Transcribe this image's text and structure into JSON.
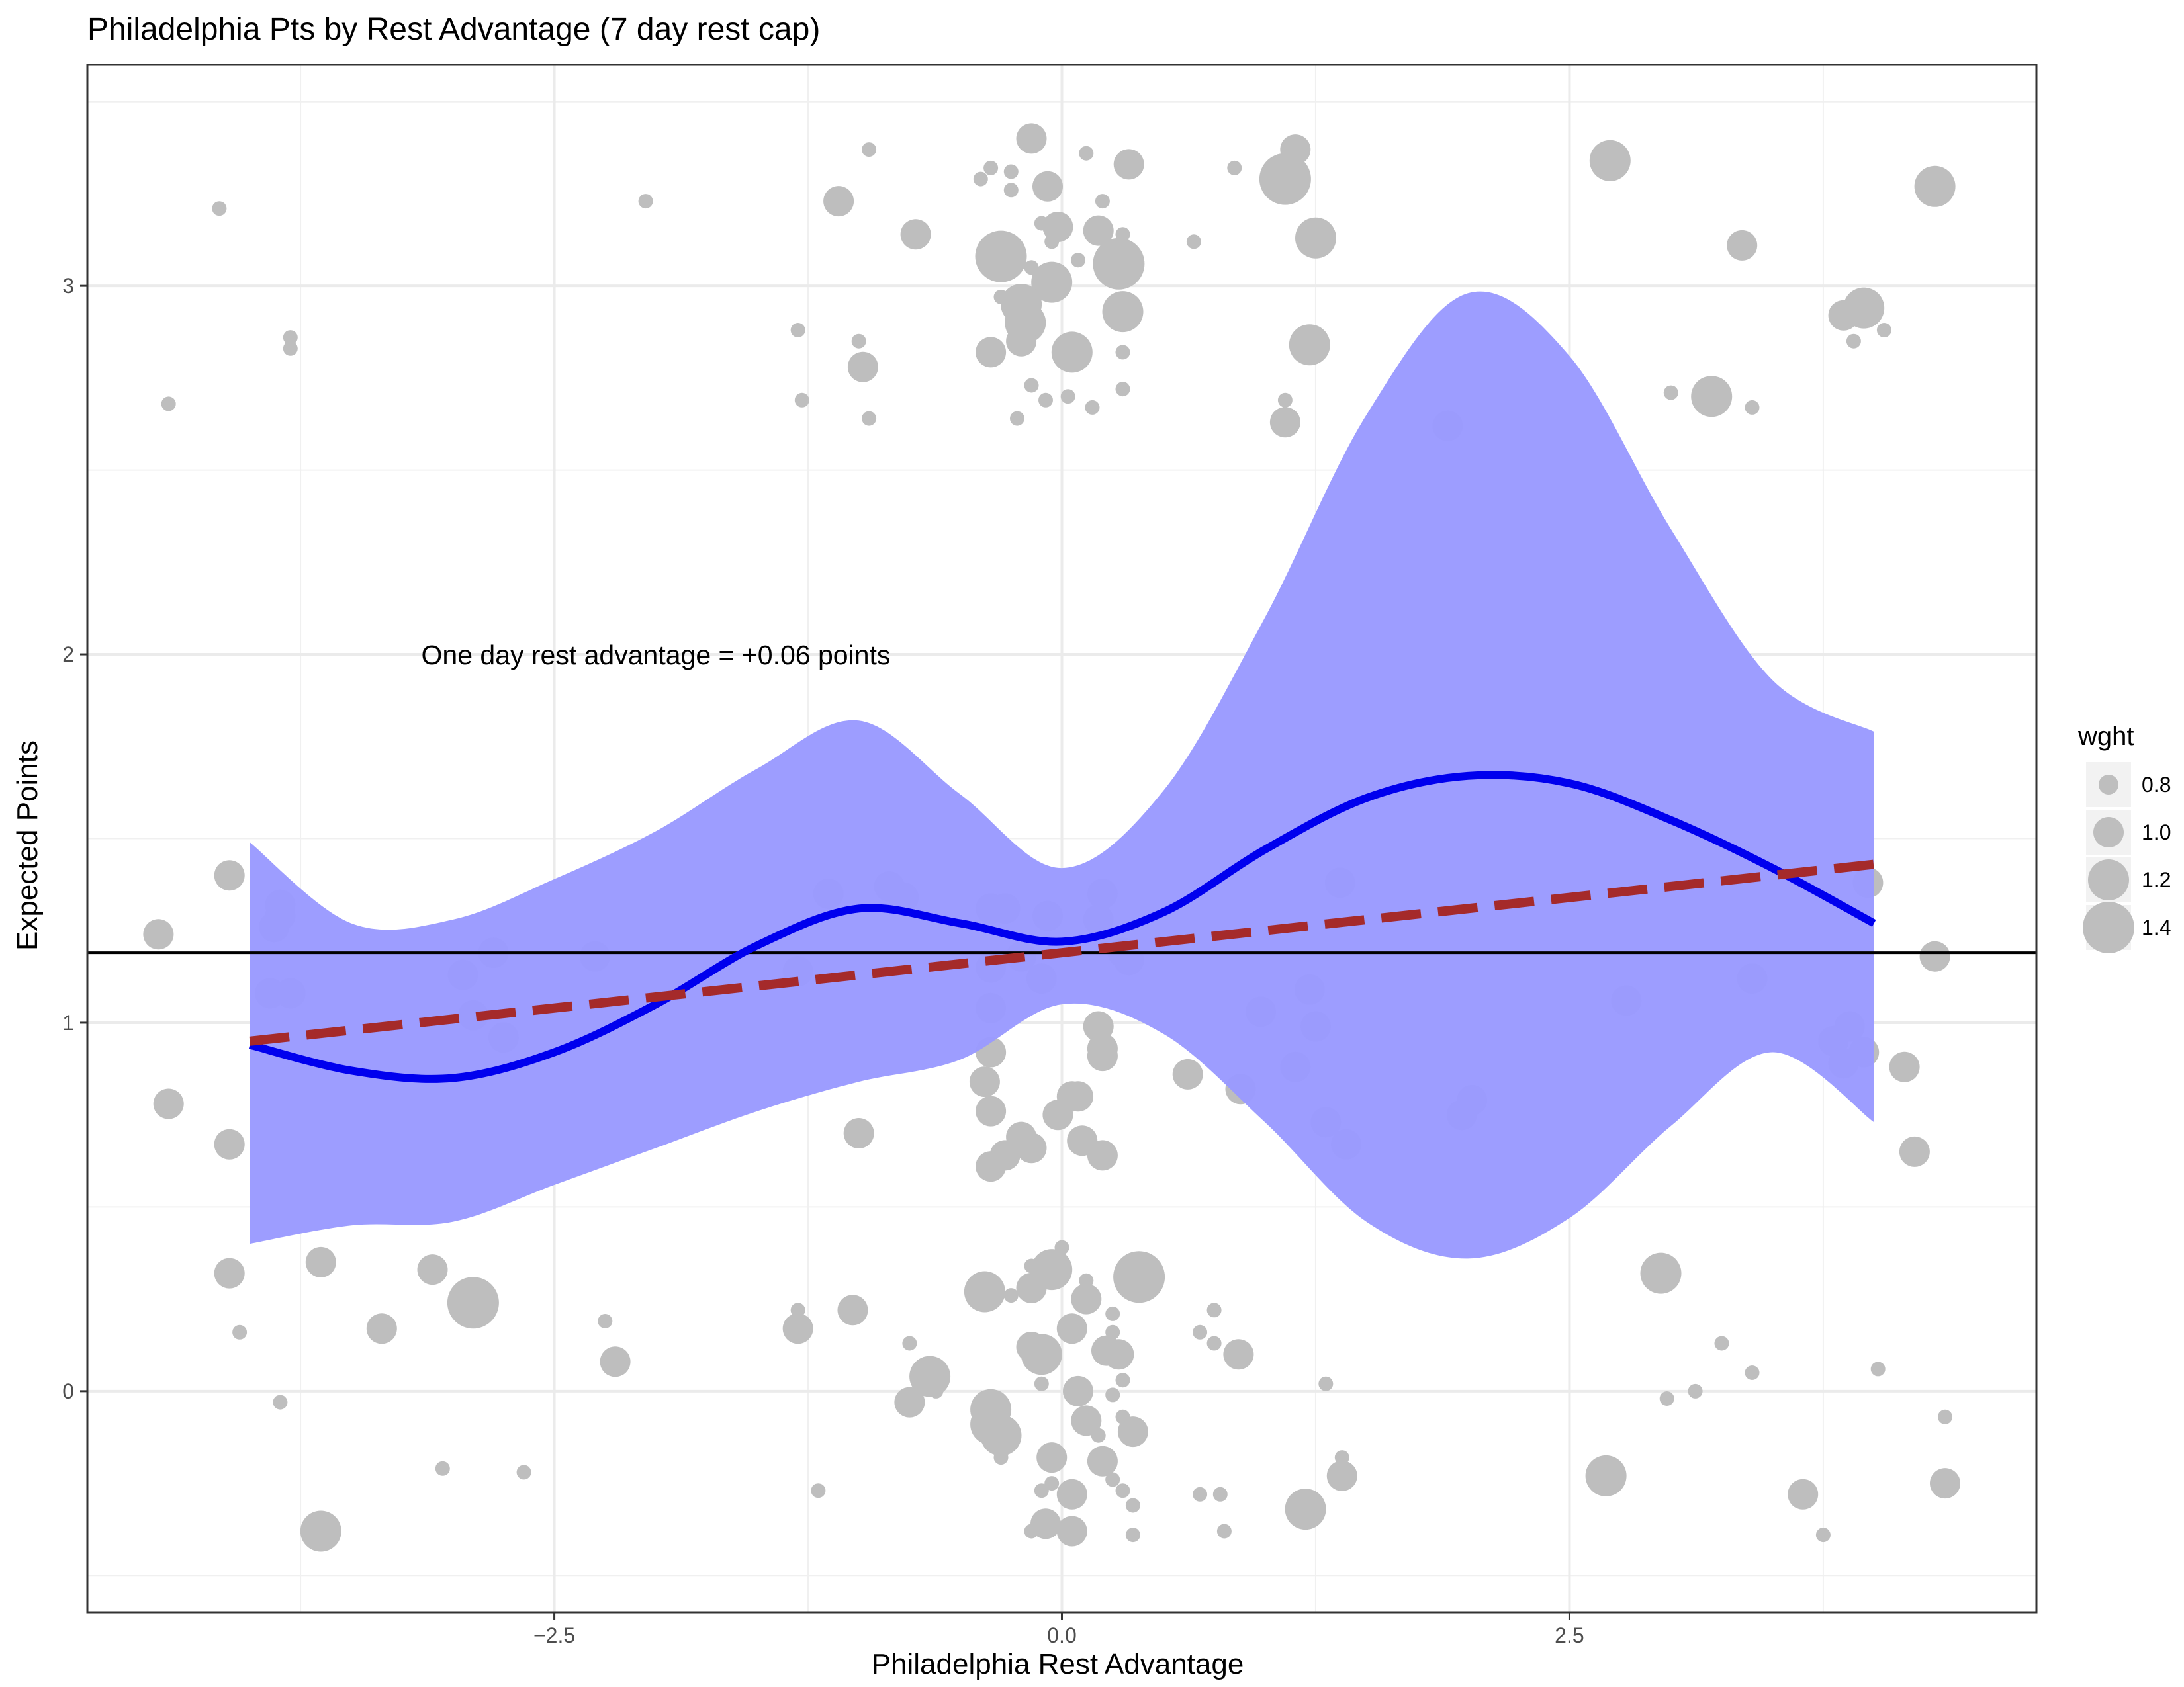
{
  "chart_data": {
    "type": "scatter",
    "title": "Philadelphia Pts by Rest Advantage (7 day rest cap)",
    "xlabel": "Philadelphia Rest Advantage",
    "ylabel": "Expected Points",
    "xlim": [
      -4.8,
      4.8
    ],
    "ylim": [
      -0.6,
      3.6
    ],
    "x_ticks": [
      -2.5,
      0,
      2.5
    ],
    "x_tick_labels": [
      "−2.5",
      "0.0",
      "2.5"
    ],
    "y_ticks": [
      0,
      1,
      2,
      3
    ],
    "y_tick_labels": [
      "0",
      "1",
      "2",
      "3"
    ],
    "grid": true,
    "reference_line": {
      "y": 1.19
    },
    "annotation": {
      "text": "One day rest advantage = +0.06 points",
      "x": -2.0,
      "y": 2.0
    },
    "legend": {
      "title": "wght",
      "placement": "right",
      "entries": [
        {
          "label": "0.8",
          "value": 0.8
        },
        {
          "label": "1.0",
          "value": 1.0
        },
        {
          "label": "1.2",
          "value": 1.2
        },
        {
          "label": "1.4",
          "value": 1.4
        }
      ]
    },
    "colors": {
      "points": "#bebebe",
      "smooth_line": "#0000ee",
      "ribbon": "#9999ff",
      "linear_fit": "#a52a2a",
      "reference": "#000000"
    },
    "linear_fit": {
      "x": [
        -4.0,
        4.0
      ],
      "y": [
        0.95,
        1.43
      ]
    },
    "smooth_fit": {
      "x": [
        -4.0,
        -3.5,
        -3.0,
        -2.5,
        -2.0,
        -1.5,
        -1.0,
        -0.5,
        0.0,
        0.5,
        1.0,
        1.5,
        2.0,
        2.5,
        3.0,
        3.5,
        4.0
      ],
      "y": [
        0.94,
        0.87,
        0.85,
        0.92,
        1.05,
        1.21,
        1.31,
        1.27,
        1.22,
        1.3,
        1.47,
        1.61,
        1.67,
        1.65,
        1.55,
        1.42,
        1.27
      ],
      "lower": [
        0.4,
        0.45,
        0.46,
        0.56,
        0.66,
        0.76,
        0.84,
        0.9,
        1.05,
        0.97,
        0.73,
        0.46,
        0.36,
        0.47,
        0.72,
        0.92,
        0.73
      ],
      "upper": [
        1.49,
        1.27,
        1.28,
        1.39,
        1.52,
        1.69,
        1.82,
        1.62,
        1.42,
        1.63,
        2.1,
        2.65,
        2.98,
        2.81,
        2.34,
        1.93,
        1.79
      ]
    },
    "points": [
      {
        "x": -0.15,
        "y": 3.4,
        "w": 1.0
      },
      {
        "x": -0.95,
        "y": 3.37,
        "w": 0.7
      },
      {
        "x": 0.12,
        "y": 3.36,
        "w": 0.7
      },
      {
        "x": 0.33,
        "y": 3.33,
        "w": 1.0
      },
      {
        "x": -0.35,
        "y": 3.32,
        "w": 0.7
      },
      {
        "x": 0.85,
        "y": 3.32,
        "w": 0.7
      },
      {
        "x": 1.1,
        "y": 3.29,
        "w": 1.4
      },
      {
        "x": 1.15,
        "y": 3.37,
        "w": 1.0
      },
      {
        "x": -0.25,
        "y": 3.31,
        "w": 0.7
      },
      {
        "x": -0.4,
        "y": 3.29,
        "w": 0.7
      },
      {
        "x": -0.07,
        "y": 3.27,
        "w": 1.0
      },
      {
        "x": -0.25,
        "y": 3.26,
        "w": 0.7
      },
      {
        "x": -2.05,
        "y": 3.23,
        "w": 0.7
      },
      {
        "x": -4.15,
        "y": 3.21,
        "w": 0.7
      },
      {
        "x": -1.1,
        "y": 3.23,
        "w": 1.0
      },
      {
        "x": 0.2,
        "y": 3.23,
        "w": 0.7
      },
      {
        "x": -0.1,
        "y": 3.17,
        "w": 0.7
      },
      {
        "x": -0.02,
        "y": 3.16,
        "w": 1.0
      },
      {
        "x": 0.18,
        "y": 3.15,
        "w": 1.0
      },
      {
        "x": 0.3,
        "y": 3.14,
        "w": 0.7
      },
      {
        "x": -0.72,
        "y": 3.14,
        "w": 1.0
      },
      {
        "x": 0.65,
        "y": 3.12,
        "w": 0.7
      },
      {
        "x": 1.25,
        "y": 3.13,
        "w": 1.2
      },
      {
        "x": -0.05,
        "y": 3.12,
        "w": 0.7
      },
      {
        "x": 3.35,
        "y": 3.11,
        "w": 1.0
      },
      {
        "x": 2.7,
        "y": 3.34,
        "w": 1.2
      },
      {
        "x": 4.3,
        "y": 3.27,
        "w": 1.2
      },
      {
        "x": -0.3,
        "y": 3.08,
        "w": 1.4
      },
      {
        "x": 0.28,
        "y": 3.06,
        "w": 1.4
      },
      {
        "x": 0.08,
        "y": 3.07,
        "w": 0.7
      },
      {
        "x": -0.15,
        "y": 3.05,
        "w": 0.7
      },
      {
        "x": -0.05,
        "y": 3.01,
        "w": 1.2
      },
      {
        "x": -0.3,
        "y": 2.97,
        "w": 0.7
      },
      {
        "x": -0.2,
        "y": 2.95,
        "w": 1.2
      },
      {
        "x": 0.3,
        "y": 2.93,
        "w": 1.2
      },
      {
        "x": -0.18,
        "y": 2.9,
        "w": 1.2
      },
      {
        "x": 3.85,
        "y": 2.92,
        "w": 1.0
      },
      {
        "x": 3.95,
        "y": 2.94,
        "w": 1.2
      },
      {
        "x": 4.05,
        "y": 2.88,
        "w": 0.7
      },
      {
        "x": -1.3,
        "y": 2.88,
        "w": 0.7
      },
      {
        "x": -3.8,
        "y": 2.86,
        "w": 0.7
      },
      {
        "x": -3.8,
        "y": 2.83,
        "w": 0.7
      },
      {
        "x": -1.0,
        "y": 2.85,
        "w": 0.7
      },
      {
        "x": -0.2,
        "y": 2.85,
        "w": 1.0
      },
      {
        "x": 0.05,
        "y": 2.82,
        "w": 1.2
      },
      {
        "x": -0.35,
        "y": 2.82,
        "w": 1.0
      },
      {
        "x": 1.22,
        "y": 2.84,
        "w": 1.2
      },
      {
        "x": 3.9,
        "y": 2.85,
        "w": 0.7
      },
      {
        "x": 0.3,
        "y": 2.82,
        "w": 0.7
      },
      {
        "x": -0.98,
        "y": 2.78,
        "w": 1.0
      },
      {
        "x": -0.15,
        "y": 2.73,
        "w": 0.7
      },
      {
        "x": 0.3,
        "y": 2.72,
        "w": 0.7
      },
      {
        "x": 3.0,
        "y": 2.71,
        "w": 0.7
      },
      {
        "x": 3.2,
        "y": 2.7,
        "w": 1.2
      },
      {
        "x": 0.03,
        "y": 2.7,
        "w": 0.7
      },
      {
        "x": -0.08,
        "y": 2.69,
        "w": 0.7
      },
      {
        "x": -4.4,
        "y": 2.68,
        "w": 0.7
      },
      {
        "x": -1.28,
        "y": 2.69,
        "w": 0.7
      },
      {
        "x": 1.1,
        "y": 2.69,
        "w": 0.7
      },
      {
        "x": 3.4,
        "y": 2.67,
        "w": 0.7
      },
      {
        "x": 0.15,
        "y": 2.67,
        "w": 0.7
      },
      {
        "x": -0.95,
        "y": 2.64,
        "w": 0.7
      },
      {
        "x": -0.22,
        "y": 2.64,
        "w": 0.7
      },
      {
        "x": 1.1,
        "y": 2.63,
        "w": 1.0
      },
      {
        "x": 1.9,
        "y": 2.62,
        "w": 1.0
      },
      {
        "x": -4.45,
        "y": 1.24,
        "w": 1.0
      },
      {
        "x": -4.1,
        "y": 1.4,
        "w": 1.0
      },
      {
        "x": -3.85,
        "y": 1.32,
        "w": 1.0
      },
      {
        "x": -3.85,
        "y": 1.29,
        "w": 1.0
      },
      {
        "x": -3.88,
        "y": 1.26,
        "w": 1.0
      },
      {
        "x": -3.9,
        "y": 1.08,
        "w": 1.0
      },
      {
        "x": -3.8,
        "y": 1.08,
        "w": 1.0
      },
      {
        "x": -2.95,
        "y": 1.13,
        "w": 1.0
      },
      {
        "x": -2.8,
        "y": 1.19,
        "w": 1.0
      },
      {
        "x": -2.9,
        "y": 1.02,
        "w": 1.0
      },
      {
        "x": -2.75,
        "y": 0.96,
        "w": 1.0
      },
      {
        "x": -2.3,
        "y": 1.18,
        "w": 1.0
      },
      {
        "x": -1.3,
        "y": 1.14,
        "w": 1.0
      },
      {
        "x": -1.15,
        "y": 1.35,
        "w": 1.0
      },
      {
        "x": -0.85,
        "y": 1.37,
        "w": 1.0
      },
      {
        "x": -0.78,
        "y": 1.34,
        "w": 1.0
      },
      {
        "x": -0.35,
        "y": 1.31,
        "w": 1.0
      },
      {
        "x": -0.28,
        "y": 1.31,
        "w": 1.0
      },
      {
        "x": -0.35,
        "y": 1.15,
        "w": 1.0
      },
      {
        "x": -0.2,
        "y": 1.18,
        "w": 1.0
      },
      {
        "x": -0.1,
        "y": 1.12,
        "w": 1.0
      },
      {
        "x": -0.07,
        "y": 1.29,
        "w": 1.0
      },
      {
        "x": 0.2,
        "y": 1.35,
        "w": 1.0
      },
      {
        "x": 0.18,
        "y": 1.28,
        "w": 1.0
      },
      {
        "x": 0.3,
        "y": 1.19,
        "w": 1.0
      },
      {
        "x": 0.33,
        "y": 1.17,
        "w": 1.0
      },
      {
        "x": -0.35,
        "y": 1.04,
        "w": 1.0
      },
      {
        "x": 0.18,
        "y": 0.99,
        "w": 1.0
      },
      {
        "x": 0.98,
        "y": 1.03,
        "w": 1.0
      },
      {
        "x": 1.22,
        "y": 1.09,
        "w": 1.0
      },
      {
        "x": 1.25,
        "y": 0.99,
        "w": 1.0
      },
      {
        "x": 1.37,
        "y": 1.38,
        "w": 1.0
      },
      {
        "x": 1.15,
        "y": 0.88,
        "w": 1.0
      },
      {
        "x": 0.88,
        "y": 0.82,
        "w": 1.0
      },
      {
        "x": 1.3,
        "y": 0.73,
        "w": 1.0
      },
      {
        "x": 1.4,
        "y": 0.67,
        "w": 1.0
      },
      {
        "x": 1.97,
        "y": 0.75,
        "w": 1.0
      },
      {
        "x": 2.02,
        "y": 0.79,
        "w": 1.0
      },
      {
        "x": 2.78,
        "y": 1.06,
        "w": 1.0
      },
      {
        "x": 3.4,
        "y": 1.12,
        "w": 1.0
      },
      {
        "x": 3.8,
        "y": 0.95,
        "w": 1.0
      },
      {
        "x": 3.85,
        "y": 0.89,
        "w": 1.0
      },
      {
        "x": 3.88,
        "y": 0.99,
        "w": 1.0
      },
      {
        "x": 3.95,
        "y": 0.92,
        "w": 1.0
      },
      {
        "x": 3.97,
        "y": 1.38,
        "w": 1.0
      },
      {
        "x": 4.3,
        "y": 1.18,
        "w": 1.0
      },
      {
        "x": 4.15,
        "y": 0.88,
        "w": 1.0
      },
      {
        "x": 4.2,
        "y": 0.65,
        "w": 1.0
      },
      {
        "x": -4.4,
        "y": 0.78,
        "w": 1.0
      },
      {
        "x": -4.1,
        "y": 0.67,
        "w": 1.0
      },
      {
        "x": -1.0,
        "y": 0.7,
        "w": 1.0
      },
      {
        "x": -0.35,
        "y": 0.92,
        "w": 1.0
      },
      {
        "x": -0.38,
        "y": 0.84,
        "w": 1.0
      },
      {
        "x": -0.35,
        "y": 0.76,
        "w": 1.0
      },
      {
        "x": -0.2,
        "y": 0.69,
        "w": 1.0
      },
      {
        "x": -0.28,
        "y": 0.64,
        "w": 1.0
      },
      {
        "x": -0.35,
        "y": 0.61,
        "w": 1.0
      },
      {
        "x": -0.15,
        "y": 0.66,
        "w": 1.0
      },
      {
        "x": -0.02,
        "y": 0.75,
        "w": 1.0
      },
      {
        "x": 0.05,
        "y": 0.8,
        "w": 1.0
      },
      {
        "x": 0.08,
        "y": 0.8,
        "w": 1.0
      },
      {
        "x": 0.1,
        "y": 0.68,
        "w": 1.0
      },
      {
        "x": 0.2,
        "y": 0.64,
        "w": 1.0
      },
      {
        "x": 0.2,
        "y": 0.91,
        "w": 1.0
      },
      {
        "x": 0.2,
        "y": 0.93,
        "w": 1.0
      },
      {
        "x": 0.62,
        "y": 0.86,
        "w": 1.0
      },
      {
        "x": -4.1,
        "y": 0.32,
        "w": 1.0
      },
      {
        "x": -3.65,
        "y": 0.35,
        "w": 1.0
      },
      {
        "x": -4.05,
        "y": 0.16,
        "w": 0.7
      },
      {
        "x": -3.35,
        "y": 0.17,
        "w": 1.0
      },
      {
        "x": -3.1,
        "y": 0.33,
        "w": 1.0
      },
      {
        "x": -2.9,
        "y": 0.24,
        "w": 1.4
      },
      {
        "x": -2.25,
        "y": 0.19,
        "w": 0.7
      },
      {
        "x": -2.2,
        "y": 0.08,
        "w": 1.0
      },
      {
        "x": -1.3,
        "y": 0.17,
        "w": 1.0
      },
      {
        "x": -1.3,
        "y": 0.22,
        "w": 0.7
      },
      {
        "x": -1.03,
        "y": 0.22,
        "w": 1.0
      },
      {
        "x": -0.38,
        "y": 0.27,
        "w": 1.2
      },
      {
        "x": -0.15,
        "y": 0.34,
        "w": 0.7
      },
      {
        "x": 0.0,
        "y": 0.39,
        "w": 0.7
      },
      {
        "x": -0.05,
        "y": 0.36,
        "w": 0.7
      },
      {
        "x": -0.05,
        "y": 0.33,
        "w": 1.2
      },
      {
        "x": -0.15,
        "y": 0.28,
        "w": 1.0
      },
      {
        "x": -0.25,
        "y": 0.26,
        "w": 0.7
      },
      {
        "x": 0.12,
        "y": 0.3,
        "w": 0.7
      },
      {
        "x": 0.12,
        "y": 0.25,
        "w": 1.0
      },
      {
        "x": 0.25,
        "y": 0.21,
        "w": 0.7
      },
      {
        "x": 0.38,
        "y": 0.31,
        "w": 1.4
      },
      {
        "x": 0.05,
        "y": 0.17,
        "w": 1.0
      },
      {
        "x": -0.15,
        "y": 0.12,
        "w": 1.0
      },
      {
        "x": -0.1,
        "y": 0.1,
        "w": 1.2
      },
      {
        "x": 0.22,
        "y": 0.11,
        "w": 1.0
      },
      {
        "x": 0.28,
        "y": 0.1,
        "w": 1.0
      },
      {
        "x": 0.25,
        "y": 0.16,
        "w": 0.7
      },
      {
        "x": 0.68,
        "y": 0.16,
        "w": 0.7
      },
      {
        "x": 0.75,
        "y": 0.22,
        "w": 0.7
      },
      {
        "x": 0.75,
        "y": 0.13,
        "w": 0.7
      },
      {
        "x": 0.87,
        "y": 0.1,
        "w": 1.0
      },
      {
        "x": -0.75,
        "y": 0.13,
        "w": 0.7
      },
      {
        "x": -0.65,
        "y": 0.04,
        "w": 1.2
      },
      {
        "x": -0.75,
        "y": -0.03,
        "w": 1.0
      },
      {
        "x": -0.62,
        "y": 0.0,
        "w": 0.7
      },
      {
        "x": 0.3,
        "y": 0.03,
        "w": 0.7
      },
      {
        "x": 0.25,
        "y": -0.01,
        "w": 0.7
      },
      {
        "x": 0.08,
        "y": 0.0,
        "w": 1.0
      },
      {
        "x": -0.1,
        "y": 0.02,
        "w": 0.7
      },
      {
        "x": -0.35,
        "y": -0.05,
        "w": 1.2
      },
      {
        "x": -0.3,
        "y": -0.12,
        "w": 1.2
      },
      {
        "x": -0.35,
        "y": -0.09,
        "w": 1.2
      },
      {
        "x": -0.25,
        "y": -0.13,
        "w": 0.7
      },
      {
        "x": -0.3,
        "y": -0.18,
        "w": 0.7
      },
      {
        "x": 0.12,
        "y": -0.08,
        "w": 1.0
      },
      {
        "x": 0.18,
        "y": -0.12,
        "w": 0.7
      },
      {
        "x": 0.35,
        "y": -0.11,
        "w": 1.0
      },
      {
        "x": 0.3,
        "y": -0.07,
        "w": 0.7
      },
      {
        "x": -0.05,
        "y": -0.18,
        "w": 1.0
      },
      {
        "x": 0.2,
        "y": -0.19,
        "w": 1.0
      },
      {
        "x": 0.25,
        "y": -0.24,
        "w": 0.7
      },
      {
        "x": 0.05,
        "y": -0.28,
        "w": 1.0
      },
      {
        "x": -0.05,
        "y": -0.25,
        "w": 0.7
      },
      {
        "x": -0.1,
        "y": -0.27,
        "w": 0.7
      },
      {
        "x": 0.3,
        "y": -0.27,
        "w": 0.7
      },
      {
        "x": 0.35,
        "y": -0.31,
        "w": 0.7
      },
      {
        "x": -0.08,
        "y": -0.36,
        "w": 1.0
      },
      {
        "x": 0.05,
        "y": -0.38,
        "w": 1.0
      },
      {
        "x": -0.15,
        "y": -0.38,
        "w": 0.7
      },
      {
        "x": 0.35,
        "y": -0.39,
        "w": 0.7
      },
      {
        "x": 0.68,
        "y": -0.28,
        "w": 0.7
      },
      {
        "x": 0.78,
        "y": -0.28,
        "w": 0.7
      },
      {
        "x": 0.8,
        "y": -0.38,
        "w": 0.7
      },
      {
        "x": 1.2,
        "y": -0.32,
        "w": 1.2
      },
      {
        "x": 1.38,
        "y": -0.23,
        "w": 1.0
      },
      {
        "x": 1.38,
        "y": -0.18,
        "w": 0.7
      },
      {
        "x": 1.3,
        "y": 0.02,
        "w": 0.7
      },
      {
        "x": -1.2,
        "y": -0.27,
        "w": 0.7
      },
      {
        "x": -3.85,
        "y": -0.03,
        "w": 0.7
      },
      {
        "x": -3.05,
        "y": -0.21,
        "w": 0.7
      },
      {
        "x": -2.65,
        "y": -0.22,
        "w": 0.7
      },
      {
        "x": -3.65,
        "y": -0.38,
        "w": 1.2
      },
      {
        "x": 2.95,
        "y": 0.32,
        "w": 1.2
      },
      {
        "x": 2.98,
        "y": -0.02,
        "w": 0.7
      },
      {
        "x": 3.12,
        "y": 0.0,
        "w": 0.7
      },
      {
        "x": 3.25,
        "y": 0.13,
        "w": 0.7
      },
      {
        "x": 3.4,
        "y": 0.05,
        "w": 0.7
      },
      {
        "x": 2.68,
        "y": -0.23,
        "w": 1.2
      },
      {
        "x": 3.65,
        "y": -0.28,
        "w": 1.0
      },
      {
        "x": 3.75,
        "y": -0.39,
        "w": 0.7
      },
      {
        "x": 4.02,
        "y": 0.06,
        "w": 0.7
      },
      {
        "x": 4.35,
        "y": -0.07,
        "w": 0.7
      },
      {
        "x": 4.35,
        "y": -0.25,
        "w": 1.0
      }
    ]
  }
}
